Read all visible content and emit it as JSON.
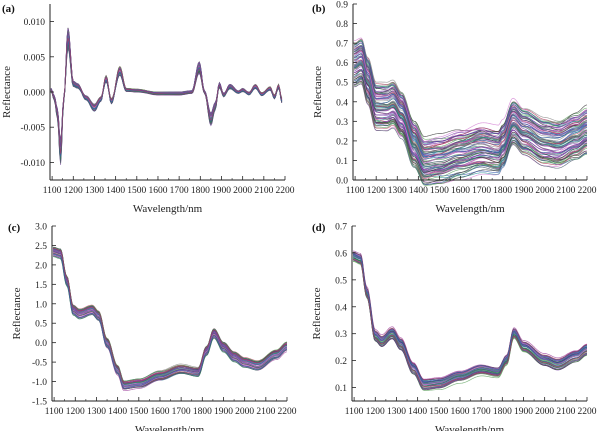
{
  "chart_data": [
    {
      "panel_label": "(a)",
      "type": "line",
      "xlabel": "Wavelength/nm",
      "ylabel": "Reflectance",
      "xlim": [
        1090,
        2200
      ],
      "ylim": [
        -0.0125,
        0.0125
      ],
      "xticks": [
        1100,
        1200,
        1300,
        1400,
        1500,
        1600,
        1700,
        1800,
        1900,
        2000,
        2100,
        2200
      ],
      "yticks": [
        "0.010",
        "0.005",
        "0.000",
        "-0.005",
        "-0.010"
      ],
      "ytick_values": [
        0.01,
        0.005,
        0.0,
        -0.005,
        -0.01
      ],
      "series_count_approx": 40,
      "mean_spectrum": {
        "x": [
          1095,
          1110,
          1125,
          1140,
          1155,
          1175,
          1200,
          1220,
          1260,
          1300,
          1330,
          1355,
          1380,
          1420,
          1450,
          1500,
          1600,
          1700,
          1760,
          1795,
          1820,
          1850,
          1870,
          1890,
          1910,
          1940,
          1980,
          2000,
          2030,
          2060,
          2090,
          2130,
          2150,
          2170,
          2185
        ],
        "y": [
          0.0003,
          -0.0008,
          -0.003,
          -0.0085,
          -0.001,
          0.0078,
          0.0012,
          0.0009,
          -0.0008,
          -0.0022,
          -0.001,
          0.0019,
          -0.0013,
          0.003,
          0.0003,
          0.0002,
          -0.0002,
          -0.0002,
          0.0,
          0.0035,
          0.0,
          -0.0038,
          -0.002,
          0.001,
          -0.0004,
          0.0008,
          0.0,
          0.0003,
          -0.0002,
          0.0008,
          -0.0003,
          0.0005,
          -0.0007,
          0.0008,
          -0.0012
        ]
      },
      "spread": 0.0006
    },
    {
      "panel_label": "(b)",
      "type": "line",
      "xlabel": "Wavelength/nm",
      "ylabel": "Reflectance",
      "xlim": [
        1090,
        2200
      ],
      "ylim": [
        0.0,
        0.9
      ],
      "xticks": [
        1100,
        1200,
        1300,
        1400,
        1500,
        1600,
        1700,
        1800,
        1900,
        2000,
        2100,
        2200
      ],
      "yticks": [
        "0.0",
        "0.1",
        "0.2",
        "0.3",
        "0.4",
        "0.5",
        "0.6",
        "0.7",
        "0.8",
        "0.9"
      ],
      "ytick_values": [
        0.0,
        0.1,
        0.2,
        0.3,
        0.4,
        0.5,
        0.6,
        0.7,
        0.8,
        0.9
      ],
      "series_count_approx": 80,
      "mean_spectrum": {
        "x": [
          1095,
          1130,
          1160,
          1200,
          1250,
          1280,
          1320,
          1380,
          1430,
          1500,
          1600,
          1700,
          1780,
          1800,
          1850,
          1900,
          2000,
          2060,
          2150,
          2200
        ],
        "y": [
          0.58,
          0.6,
          0.5,
          0.37,
          0.37,
          0.385,
          0.33,
          0.18,
          0.09,
          0.1,
          0.13,
          0.155,
          0.14,
          0.17,
          0.285,
          0.24,
          0.19,
          0.18,
          0.22,
          0.25
        ]
      },
      "spread": 0.11
    },
    {
      "panel_label": "(c)",
      "type": "line",
      "xlabel": "Wavelength/nm",
      "ylabel": "Reflectance",
      "xlim": [
        1090,
        2200
      ],
      "ylim": [
        -1.5,
        3.0
      ],
      "xticks": [
        1100,
        1200,
        1300,
        1400,
        1500,
        1600,
        1700,
        1800,
        1900,
        2000,
        2100,
        2200
      ],
      "yticks": [
        "-1.5",
        "-1.0",
        "-0.5",
        "0.0",
        "0.5",
        "1.0",
        "1.5",
        "2.0",
        "2.5",
        "3.0"
      ],
      "ytick_values": [
        -1.5,
        -1.0,
        -0.5,
        0.0,
        0.5,
        1.0,
        1.5,
        2.0,
        2.5,
        3.0
      ],
      "series_count_approx": 40,
      "mean_spectrum": {
        "x": [
          1095,
          1130,
          1160,
          1190,
          1220,
          1280,
          1310,
          1350,
          1400,
          1430,
          1500,
          1600,
          1700,
          1780,
          1820,
          1855,
          1900,
          1950,
          2000,
          2060,
          2150,
          2200
        ],
        "y": [
          2.35,
          2.3,
          1.6,
          0.85,
          0.75,
          0.85,
          0.7,
          0.0,
          -0.7,
          -1.1,
          -1.05,
          -0.85,
          -0.68,
          -0.75,
          -0.2,
          0.25,
          -0.1,
          -0.35,
          -0.5,
          -0.58,
          -0.3,
          -0.1
        ]
      },
      "spread": 0.11
    },
    {
      "panel_label": "(d)",
      "type": "line",
      "xlabel": "Wavelength/nm",
      "ylabel": "Reflectance",
      "xlim": [
        1090,
        2200
      ],
      "ylim": [
        0.05,
        0.7
      ],
      "xticks": [
        1100,
        1200,
        1300,
        1400,
        1500,
        1600,
        1700,
        1800,
        1900,
        2000,
        2100,
        2200
      ],
      "yticks": [
        "0.1",
        "0.2",
        "0.3",
        "0.4",
        "0.5",
        "0.6",
        "0.7"
      ],
      "ytick_values": [
        0.1,
        0.2,
        0.3,
        0.4,
        0.5,
        0.6,
        0.7
      ],
      "series_count_approx": 40,
      "mean_spectrum": {
        "x": [
          1095,
          1130,
          1160,
          1200,
          1230,
          1280,
          1320,
          1380,
          1430,
          1500,
          1600,
          1700,
          1780,
          1820,
          1855,
          1900,
          2000,
          2060,
          2150,
          2200
        ],
        "y": [
          0.585,
          0.575,
          0.45,
          0.29,
          0.27,
          0.3,
          0.26,
          0.17,
          0.11,
          0.115,
          0.14,
          0.165,
          0.155,
          0.2,
          0.3,
          0.25,
          0.2,
          0.185,
          0.215,
          0.24
        ]
      },
      "spread": 0.02
    }
  ],
  "colors": [
    "#6b2fa0",
    "#2e7d5b",
    "#3a5fb0",
    "#b03a5a",
    "#333333",
    "#888888",
    "#d07ad0",
    "#2a8f9a",
    "#7a4aa8",
    "#5aa05a",
    "#9a3a9a",
    "#445566"
  ]
}
